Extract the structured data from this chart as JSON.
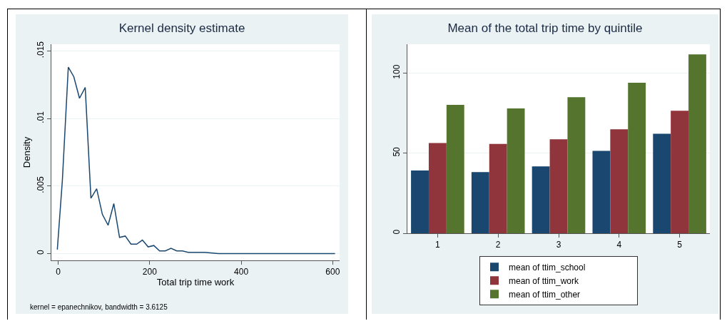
{
  "chart_data": [
    {
      "type": "line",
      "title": "Kernel density estimate",
      "xlabel": "Total trip time work",
      "ylabel": "Density",
      "annotations": [
        "kernel = epanechnikov, bandwidth = 3.6125"
      ],
      "series": [
        {
          "color": "#1a476f",
          "x": [
            -2,
            9,
            22,
            34,
            46.5,
            59,
            71.5,
            84,
            96.5,
            109,
            121.5,
            134,
            146.5,
            159,
            171.5,
            184,
            196.5,
            209,
            221.5,
            234,
            246.5,
            259,
            271.5,
            284,
            296.5,
            320,
            350,
            400,
            450,
            500,
            550,
            605
          ],
          "values": [
            0.0003,
            0.0054,
            0.0138,
            0.0131,
            0.0115,
            0.0123,
            0.0041,
            0.0048,
            0.0029,
            0.0021,
            0.0037,
            0.0012,
            0.0013,
            0.0007,
            0.0007,
            0.001,
            0.0005,
            0.0006,
            0.0002,
            0.0002,
            0.0004,
            0.0002,
            0.0002,
            0.0001,
            0.0001,
            0.0001,
            0,
            0,
            0,
            0,
            0,
            0
          ]
        }
      ],
      "xlim": [
        -15,
        615
      ],
      "xticks": [
        0,
        200,
        400,
        600
      ],
      "ylim": [
        -0.0005,
        0.0155
      ],
      "yticks": [
        {
          "value": 0,
          "label": "0"
        },
        {
          "value": 0.005,
          "label": ".005"
        },
        {
          "value": 0.01,
          "label": ".01"
        },
        {
          "value": 0.015,
          "label": ".015"
        }
      ],
      "grid": "y",
      "legend": false,
      "line_style": "solid",
      "marker": "none"
    },
    {
      "type": "bar",
      "title": "Mean of the total trip time by quintile",
      "categories": [
        "1",
        "2",
        "3",
        "4",
        "5"
      ],
      "series": [
        {
          "name": "mean of ttim_school",
          "color": "#1a476f",
          "values": [
            39.2,
            38.2,
            41.7,
            51.4,
            62.1
          ]
        },
        {
          "name": "mean of ttim_work",
          "color": "#90353b",
          "values": [
            56.3,
            55.8,
            58.7,
            64.9,
            76.5
          ]
        },
        {
          "name": "mean of ttim_other",
          "color": "#55752f",
          "values": [
            80.1,
            77.9,
            84.9,
            93.9,
            111.7
          ]
        }
      ],
      "ylim": [
        0,
        118
      ],
      "yticks": [
        0,
        50,
        100
      ],
      "grid": "y",
      "legend": "bottom"
    }
  ]
}
